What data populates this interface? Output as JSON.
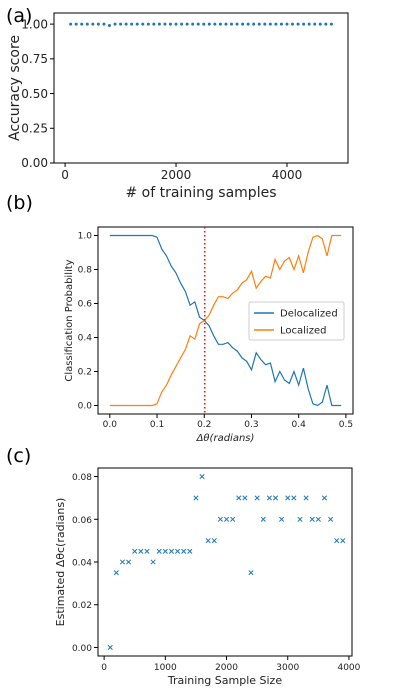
{
  "chart_data": [
    {
      "panel": "(a)",
      "type": "scatter",
      "title": "",
      "xlabel": "# of training samples",
      "ylabel": "Accuracy score",
      "xlim": [
        -200,
        5100
      ],
      "ylim": [
        0,
        1.08
      ],
      "xticks": [
        0,
        2000,
        4000
      ],
      "xtick_labels": [
        "0",
        "2000",
        "4000"
      ],
      "yticks": [
        0,
        0.25,
        0.5,
        0.75,
        1.0
      ],
      "ytick_labels": [
        "0.00",
        "0.25",
        "0.50",
        "0.75",
        "1.00"
      ],
      "grid": false,
      "color": "#1f77b4",
      "series": [
        {
          "x": [
            100,
            200,
            300,
            400,
            500,
            600,
            700,
            800,
            900,
            1000,
            1100,
            1200,
            1300,
            1400,
            1500,
            1600,
            1700,
            1800,
            1900,
            2000,
            2100,
            2200,
            2300,
            2400,
            2500,
            2600,
            2700,
            2800,
            2900,
            3000,
            3100,
            3200,
            3300,
            3400,
            3500,
            3600,
            3700,
            3800,
            3900,
            4000,
            4100,
            4200,
            4300,
            4400,
            4500,
            4600,
            4700,
            4800
          ],
          "y": [
            1,
            1,
            1,
            1,
            1,
            1,
            1,
            0.99,
            1,
            1,
            1,
            1,
            1,
            1,
            1,
            1,
            1,
            1,
            1,
            1,
            1,
            1,
            1,
            1,
            1,
            1,
            1,
            1,
            1,
            1,
            1,
            1,
            1,
            1,
            1,
            1,
            1,
            1,
            1,
            1,
            1,
            1,
            1,
            1,
            1,
            1,
            1,
            1
          ]
        }
      ]
    },
    {
      "panel": "(b)",
      "type": "line",
      "title": "",
      "xlabel": "Δθ(radians)",
      "ylabel": "Classification Probability",
      "xlim": [
        -0.025,
        0.515
      ],
      "ylim": [
        -0.05,
        1.05
      ],
      "xticks": [
        0.0,
        0.1,
        0.2,
        0.3,
        0.4,
        0.5
      ],
      "xtick_labels": [
        "0.0",
        "0.1",
        "0.2",
        "0.3",
        "0.4",
        "0.5"
      ],
      "yticks": [
        0.0,
        0.2,
        0.4,
        0.6,
        0.8,
        1.0
      ],
      "ytick_labels": [
        "0.0",
        "0.2",
        "0.4",
        "0.6",
        "0.8",
        "1.0"
      ],
      "grid": false,
      "vline": {
        "x": 0.201,
        "color": "#e8101a",
        "style": "dotted"
      },
      "legend_position": "center-right",
      "x": [
        0.0,
        0.01,
        0.02,
        0.03,
        0.04,
        0.05,
        0.06,
        0.07,
        0.08,
        0.09,
        0.1,
        0.11,
        0.12,
        0.13,
        0.14,
        0.15,
        0.16,
        0.17,
        0.18,
        0.19,
        0.2,
        0.21,
        0.22,
        0.23,
        0.24,
        0.25,
        0.26,
        0.27,
        0.28,
        0.29,
        0.3,
        0.31,
        0.32,
        0.33,
        0.34,
        0.35,
        0.36,
        0.37,
        0.38,
        0.39,
        0.4,
        0.41,
        0.42,
        0.43,
        0.44,
        0.45,
        0.46,
        0.47,
        0.48,
        0.49
      ],
      "series": [
        {
          "name": "Delocalized",
          "color": "#1f77b4",
          "values": [
            1.0,
            1.0,
            1.0,
            1.0,
            1.0,
            1.0,
            1.0,
            1.0,
            1.0,
            1.0,
            0.99,
            0.92,
            0.88,
            0.82,
            0.78,
            0.72,
            0.67,
            0.59,
            0.61,
            0.52,
            0.5,
            0.47,
            0.41,
            0.36,
            0.36,
            0.37,
            0.34,
            0.32,
            0.28,
            0.26,
            0.21,
            0.31,
            0.27,
            0.24,
            0.25,
            0.14,
            0.2,
            0.15,
            0.13,
            0.2,
            0.12,
            0.22,
            0.1,
            0.01,
            0.0,
            0.02,
            0.12,
            0.0,
            0.0,
            0.0
          ]
        },
        {
          "name": "Localized",
          "color": "#ff7f0e",
          "values": [
            0.0,
            0.0,
            0.0,
            0.0,
            0.0,
            0.0,
            0.0,
            0.0,
            0.0,
            0.0,
            0.01,
            0.08,
            0.12,
            0.18,
            0.23,
            0.28,
            0.33,
            0.41,
            0.39,
            0.48,
            0.5,
            0.53,
            0.59,
            0.64,
            0.64,
            0.63,
            0.66,
            0.68,
            0.72,
            0.74,
            0.79,
            0.69,
            0.73,
            0.76,
            0.75,
            0.86,
            0.8,
            0.85,
            0.87,
            0.8,
            0.88,
            0.78,
            0.9,
            0.99,
            1.0,
            0.98,
            0.88,
            1.0,
            1.0,
            1.0
          ]
        }
      ]
    },
    {
      "panel": "(c)",
      "type": "scatter",
      "title": "",
      "xlabel": "Training Sample Size",
      "ylabel": "Estimated Δθc(radians)",
      "xlim": [
        -100,
        4050
      ],
      "ylim": [
        -0.004,
        0.084
      ],
      "xticks": [
        0,
        1000,
        2000,
        3000,
        4000
      ],
      "xtick_labels": [
        "0",
        "1000",
        "2000",
        "3000",
        "4000"
      ],
      "yticks": [
        0.0,
        0.02,
        0.04,
        0.06,
        0.08
      ],
      "ytick_labels": [
        "0.00",
        "0.02",
        "0.04",
        "0.06",
        "0.08"
      ],
      "grid": false,
      "marker": "x",
      "color": "#1f77b4",
      "series": [
        {
          "x": [
            100,
            200,
            300,
            400,
            500,
            600,
            700,
            800,
            900,
            1000,
            1100,
            1200,
            1300,
            1400,
            1500,
            1600,
            1700,
            1800,
            1900,
            2000,
            2100,
            2200,
            2300,
            2400,
            2500,
            2600,
            2700,
            2800,
            2900,
            3000,
            3100,
            3200,
            3300,
            3400,
            3500,
            3600,
            3700,
            3800,
            3900
          ],
          "y": [
            0.0,
            0.035,
            0.04,
            0.04,
            0.045,
            0.045,
            0.045,
            0.04,
            0.045,
            0.045,
            0.045,
            0.045,
            0.045,
            0.045,
            0.07,
            0.08,
            0.05,
            0.05,
            0.06,
            0.06,
            0.06,
            0.07,
            0.07,
            0.035,
            0.07,
            0.06,
            0.07,
            0.07,
            0.06,
            0.07,
            0.07,
            0.06,
            0.07,
            0.06,
            0.06,
            0.07,
            0.06,
            0.05,
            0.05
          ]
        }
      ]
    }
  ]
}
